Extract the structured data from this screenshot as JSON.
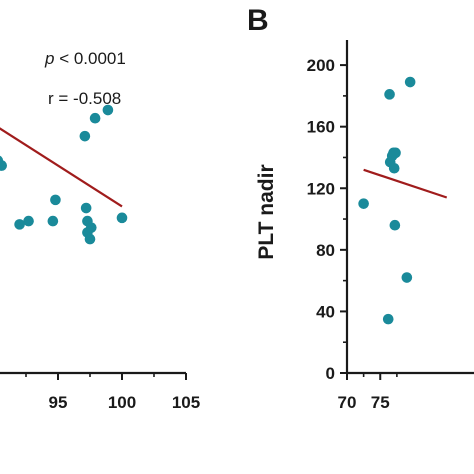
{
  "chart_data": [
    {
      "type": "scatter",
      "panel_label": "",
      "annotations": {
        "p_prefix": "p",
        "p_rest": " < 0.0001",
        "r": "r = -0.508"
      },
      "xlabel": "",
      "ylabel": "",
      "xlim": [
        90,
        105
      ],
      "ylim": [
        0,
        210
      ],
      "xticks": [
        95,
        100,
        105
      ],
      "yticks": [],
      "point_color": "#1a8a9a",
      "fit_color": "#a01c1c",
      "points": {
        "x": [
          90.3,
          90.6,
          92.0,
          92.7,
          94.6,
          94.8,
          97.1,
          97.2,
          97.3,
          97.3,
          97.5,
          97.6,
          97.9,
          98.9,
          100.0
        ],
        "y": [
          130,
          127,
          91,
          93,
          93,
          106,
          145,
          101,
          93,
          86,
          82,
          89,
          156,
          161,
          95
        ]
      },
      "fit": {
        "x": [
          90,
          100
        ],
        "y": [
          152,
          102
        ]
      }
    },
    {
      "type": "scatter",
      "panel_label": "B",
      "xlabel": "",
      "ylabel": "PLT nadir",
      "xlim": [
        70,
        90
      ],
      "ylim": [
        0,
        215
      ],
      "xticks": [
        70,
        75
      ],
      "yticks": [
        0,
        40,
        80,
        120,
        160,
        200
      ],
      "point_color": "#1a8a9a",
      "fit_color": "#a01c1c",
      "points": {
        "x": [
          72.5,
          76.2,
          76.4,
          76.5,
          76.8,
          77.0,
          77.1,
          77.2,
          77.3,
          79.0,
          79.5
        ],
        "y": [
          110,
          35,
          181,
          137,
          141,
          143,
          133,
          96,
          143,
          62,
          189
        ]
      },
      "fit": {
        "x": [
          72.5,
          85
        ],
        "y": [
          132,
          114
        ]
      }
    }
  ]
}
